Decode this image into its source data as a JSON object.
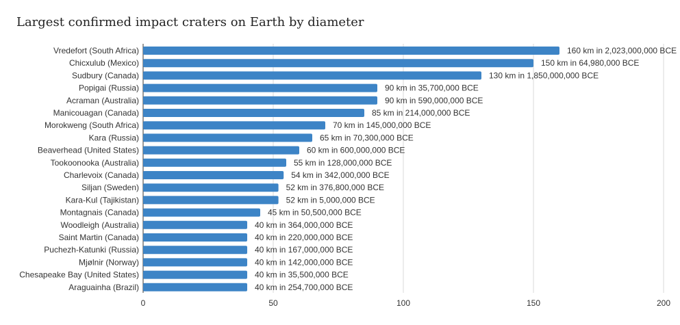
{
  "chart_data": {
    "type": "bar",
    "orientation": "horizontal",
    "title": "Largest confirmed impact craters on Earth by diameter",
    "xlabel": "",
    "ylabel": "",
    "xlim": [
      0,
      200
    ],
    "ticks": [
      "0",
      "50",
      "100",
      "150",
      "200"
    ],
    "tick_values": [
      0,
      50,
      100,
      150,
      200
    ],
    "grid": true,
    "bar_color": "#3d84c6",
    "categories": [
      "Vredefort (South Africa)",
      "Chicxulub (Mexico)",
      "Sudbury (Canada)",
      "Popigai (Russia)",
      "Acraman (Australia)",
      "Manicouagan (Canada)",
      "Morokweng (South Africa)",
      "Kara (Russia)",
      "Beaverhead (United States)",
      "Tookoonooka (Australia)",
      "Charlevoix (Canada)",
      "Siljan (Sweden)",
      "Kara-Kul (Tajikistan)",
      "Montagnais (Canada)",
      "Woodleigh (Australia)",
      "Saint Martin (Canada)",
      "Puchezh-Katunki (Russia)",
      "Mjølnir (Norway)",
      "Chesapeake Bay (United States)",
      "Araguainha (Brazil)"
    ],
    "values": [
      160,
      150,
      130,
      90,
      90,
      85,
      70,
      65,
      60,
      55,
      54,
      52,
      52,
      45,
      40,
      40,
      40,
      40,
      40,
      40
    ],
    "data_labels": [
      "160 km in 2,023,000,000 BCE",
      "150 km in 64,980,000 BCE",
      "130 km in 1,850,000,000 BCE",
      "90 km in 35,700,000 BCE",
      "90 km in 590,000,000 BCE",
      "85 km in 214,000,000 BCE",
      "70 km in 145,000,000 BCE",
      "65 km in 70,300,000 BCE",
      "60 km in 600,000,000 BCE",
      "55 km in 128,000,000 BCE",
      "54 km in 342,000,000 BCE",
      "52 km in 376,800,000 BCE",
      "52 km in 5,000,000 BCE",
      "45 km in 50,500,000 BCE",
      "40 km in 364,000,000 BCE",
      "40 km in 220,000,000 BCE",
      "40 km in 167,000,000 BCE",
      "40 km in 142,000,000 BCE",
      "40 km in 35,500,000 BCE",
      "40 km in 254,700,000 BCE"
    ]
  }
}
